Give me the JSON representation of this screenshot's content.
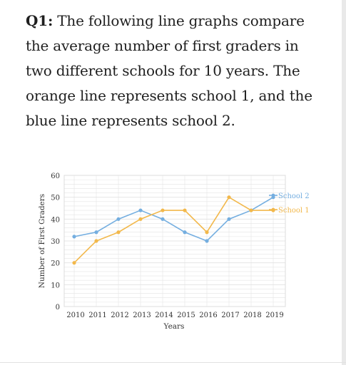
{
  "question": {
    "label": "Q1:",
    "text": "The following line graphs compare the average number of first graders in two different schools for 10 years. The orange line represents school 1, and the blue line represents school 2."
  },
  "colors": {
    "school1": "#f2b84b",
    "school2": "#74aee0",
    "grid": "#e4e4e4",
    "axis_text": "#333333"
  },
  "chart_data": {
    "type": "line",
    "title": "",
    "xlabel": "Years",
    "ylabel": "Number of First Graders",
    "x": [
      "2010",
      "2011",
      "2012",
      "2013",
      "2014",
      "2015",
      "2016",
      "2017",
      "2018",
      "2019"
    ],
    "ylim": [
      0,
      60
    ],
    "yticks": [
      0,
      10,
      20,
      30,
      40,
      50,
      60
    ],
    "grid": true,
    "legend_position": "right",
    "series": [
      {
        "name": "School 2",
        "color": "#74aee0",
        "values": [
          32,
          34,
          40,
          44,
          40,
          34,
          30,
          40,
          44,
          50
        ]
      },
      {
        "name": "School 1",
        "color": "#f2b84b",
        "values": [
          20,
          30,
          34,
          40,
          44,
          44,
          34,
          50,
          44,
          44
        ]
      }
    ]
  }
}
